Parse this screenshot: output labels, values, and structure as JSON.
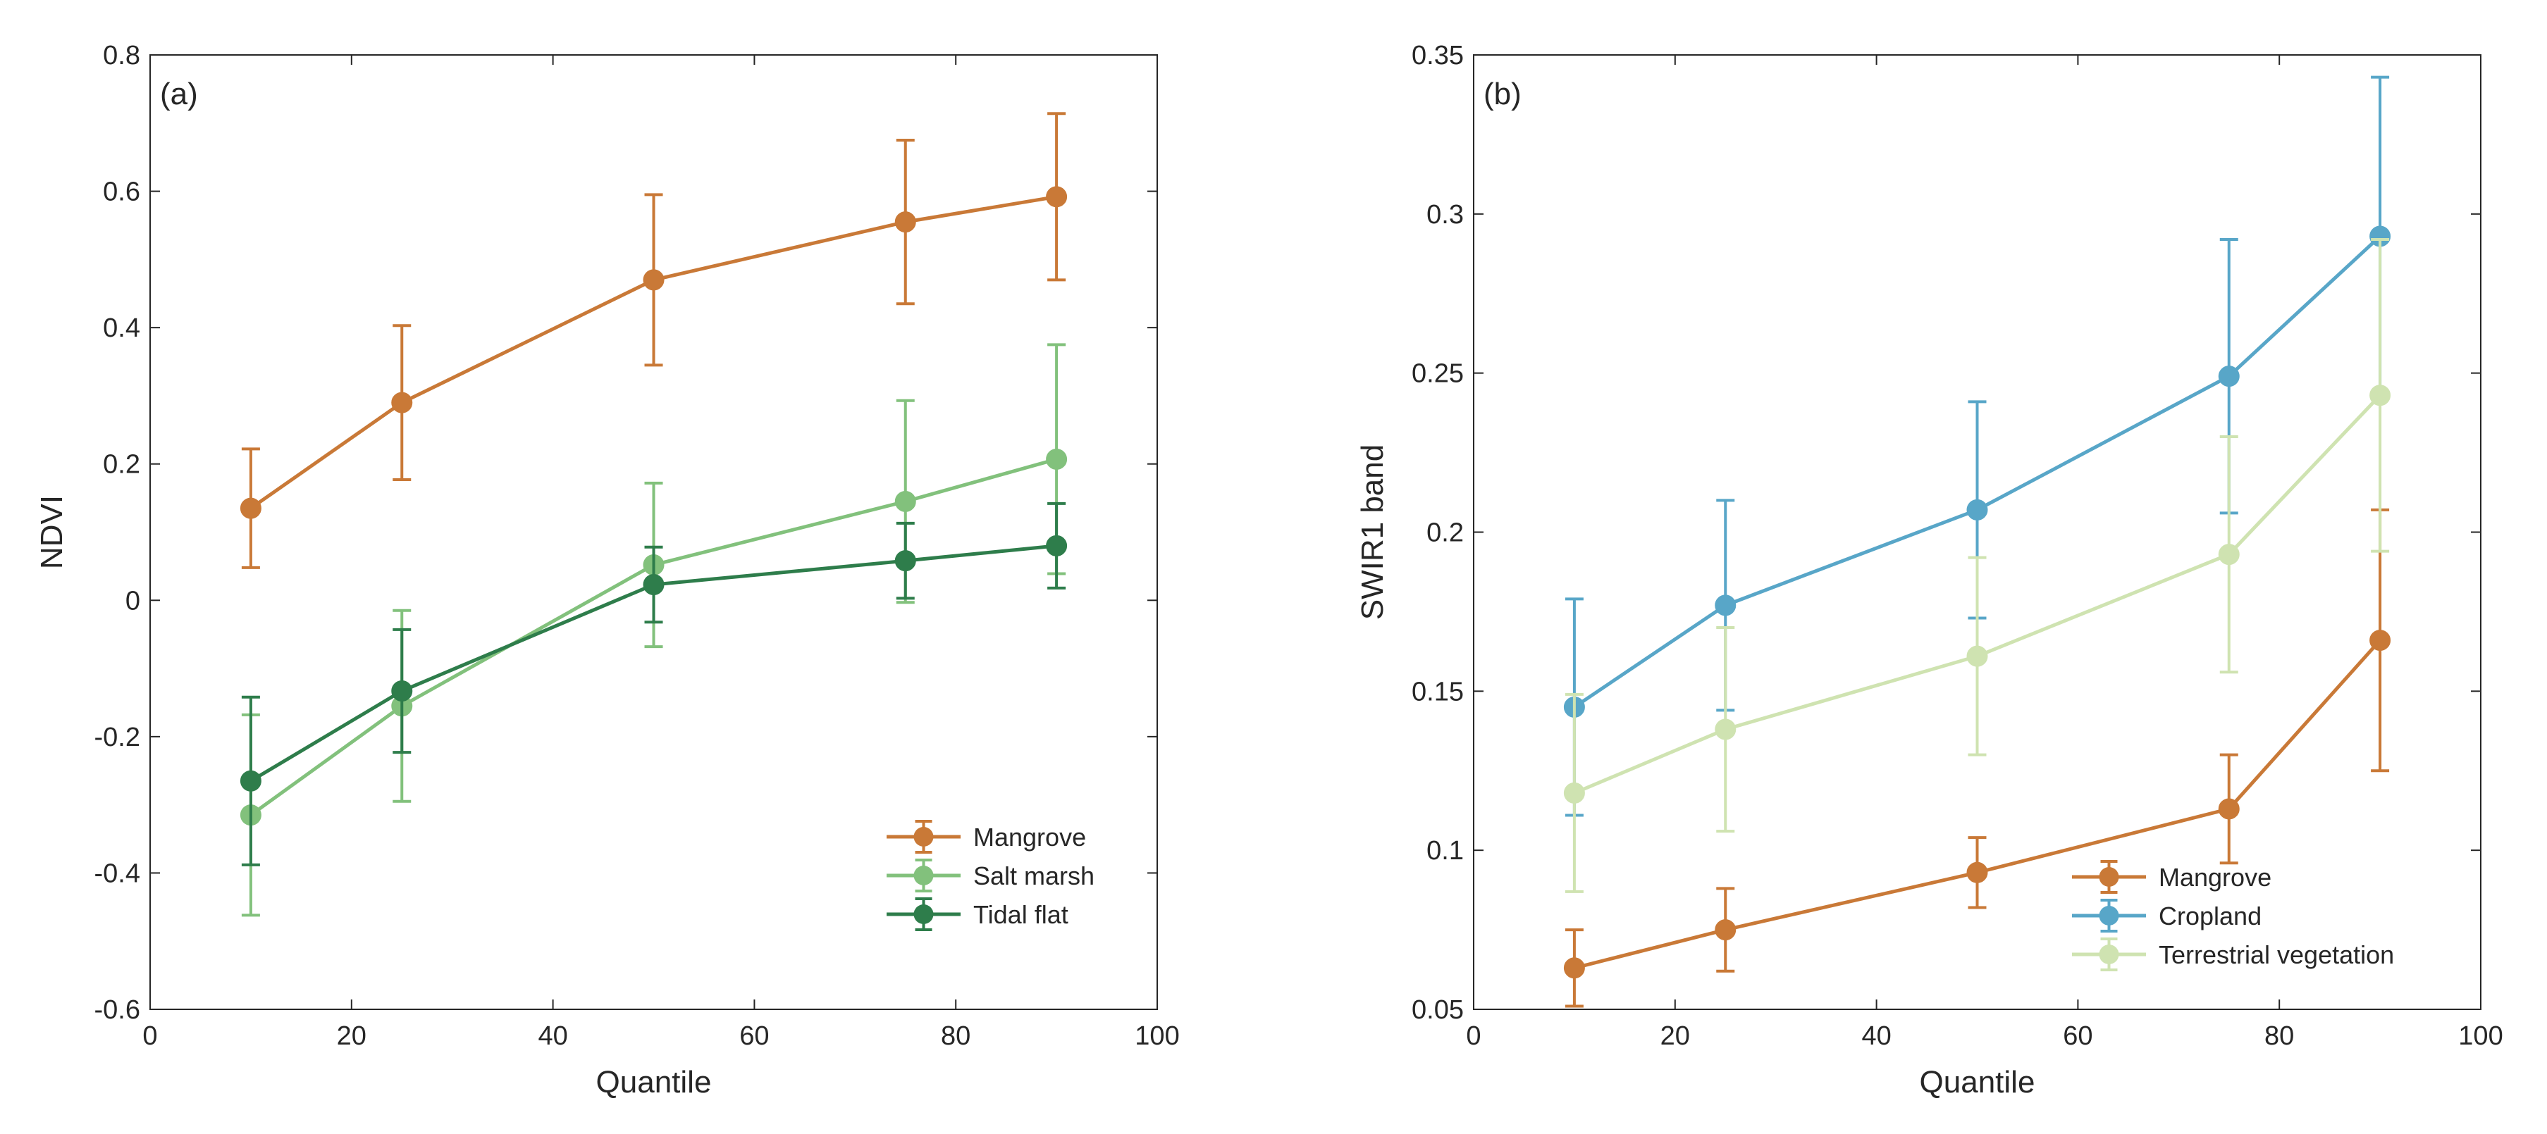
{
  "chart_data": [
    {
      "type": "line",
      "panel_label": "(a)",
      "xlabel": "Quantile",
      "ylabel": "NDVI",
      "xlim": [
        0,
        100
      ],
      "ylim": [
        -0.6,
        0.8
      ],
      "x_ticks": [
        0,
        20,
        40,
        60,
        80,
        100
      ],
      "x_tick_labels": [
        "0",
        "20",
        "40",
        "60",
        "80",
        "100"
      ],
      "y_ticks": [
        -0.6,
        -0.4,
        -0.2,
        0,
        0.2,
        0.4,
        0.6,
        0.8
      ],
      "y_tick_labels": [
        "-0.6",
        "-0.4",
        "-0.2",
        "0",
        "0.2",
        "0.4",
        "0.6",
        "0.8"
      ],
      "grid": false,
      "legend_position": "bottom-right",
      "x": [
        10,
        25,
        50,
        75,
        90
      ],
      "series": [
        {
          "name": "Mangrove",
          "color": "#C97937",
          "values": [
            0.135,
            0.29,
            0.47,
            0.555,
            0.592
          ],
          "error": [
            0.087,
            0.113,
            0.125,
            0.12,
            0.122
          ]
        },
        {
          "name": "Salt marsh",
          "color": "#82C17C",
          "values": [
            -0.315,
            -0.155,
            0.052,
            0.145,
            0.207
          ],
          "error": [
            0.147,
            0.14,
            0.12,
            0.148,
            0.168
          ]
        },
        {
          "name": "Tidal flat",
          "color": "#2E7D4B",
          "values": [
            -0.265,
            -0.133,
            0.023,
            0.058,
            0.08
          ],
          "error": [
            0.123,
            0.09,
            0.055,
            0.055,
            0.062
          ]
        }
      ]
    },
    {
      "type": "line",
      "panel_label": "(b)",
      "xlabel": "Quantile",
      "ylabel": "SWIR1 band",
      "xlim": [
        0,
        100
      ],
      "ylim": [
        0.05,
        0.35
      ],
      "x_ticks": [
        0,
        20,
        40,
        60,
        80,
        100
      ],
      "x_tick_labels": [
        "0",
        "20",
        "40",
        "60",
        "80",
        "100"
      ],
      "y_ticks": [
        0.05,
        0.1,
        0.15,
        0.2,
        0.25,
        0.3,
        0.35
      ],
      "y_tick_labels": [
        "0.05",
        "0.1",
        "0.15",
        "0.2",
        "0.25",
        "0.3",
        "0.35"
      ],
      "grid": false,
      "legend_position": "bottom-right",
      "x": [
        10,
        25,
        50,
        75,
        90
      ],
      "series": [
        {
          "name": "Mangrove",
          "color": "#C97937",
          "values": [
            0.063,
            0.075,
            0.093,
            0.113,
            0.166
          ],
          "error": [
            0.012,
            0.013,
            0.011,
            0.017,
            0.041
          ]
        },
        {
          "name": "Cropland",
          "color": "#58A6C8",
          "values": [
            0.145,
            0.177,
            0.207,
            0.249,
            0.293
          ],
          "error": [
            0.034,
            0.033,
            0.034,
            0.043,
            0.05
          ]
        },
        {
          "name": "Terrestrial vegetation",
          "color": "#CFE3B1",
          "values": [
            0.118,
            0.138,
            0.161,
            0.193,
            0.243
          ],
          "error": [
            0.031,
            0.032,
            0.031,
            0.037,
            0.049
          ]
        }
      ]
    }
  ]
}
